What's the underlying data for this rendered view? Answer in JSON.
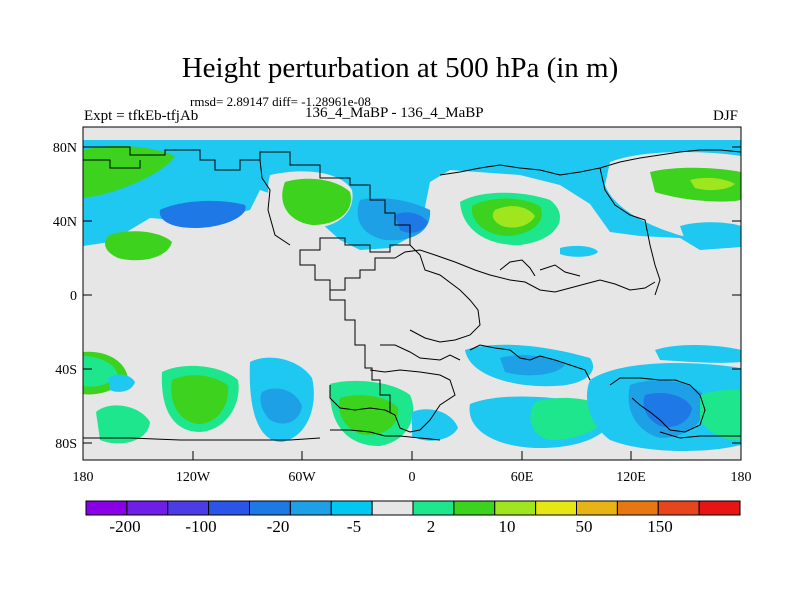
{
  "title": "Height perturbation at 500 hPa (in m)",
  "stats_text": "rmsd= 2.89147 diff= -1.28961e-08",
  "expt_text": "Expt = tfkEb-tfjAb",
  "subtitle": "136_4_MaBP - 136_4_MaBP",
  "season": "DJF",
  "lat_ticks": [
    "80N",
    "40N",
    "0",
    "40S",
    "80S"
  ],
  "lon_ticks": [
    "180",
    "120W",
    "60W",
    "0",
    "60E",
    "120E",
    "180"
  ],
  "colorbar": {
    "labels": [
      "-200",
      "-100",
      "-20",
      "-5",
      "2",
      "10",
      "50",
      "150"
    ],
    "colors": [
      "#8a00e6",
      "#6e1ee6",
      "#4b3ce6",
      "#2a55e6",
      "#1e78e6",
      "#1ea0e6",
      "#00c8f0",
      "#e6e6e6",
      "#1ee68c",
      "#3cd21e",
      "#a0e61e",
      "#e6e614",
      "#e6b414",
      "#e67814",
      "#e6461e",
      "#e61414"
    ]
  },
  "fill_colors": {
    "neutral": "#e6e6e6",
    "light_blue": "#1ec8f0",
    "mid_blue": "#1ea0e6",
    "blue": "#1e78e6",
    "teal": "#1ee68c",
    "green": "#3cd21e",
    "yellow_green": "#a0e61e"
  }
}
